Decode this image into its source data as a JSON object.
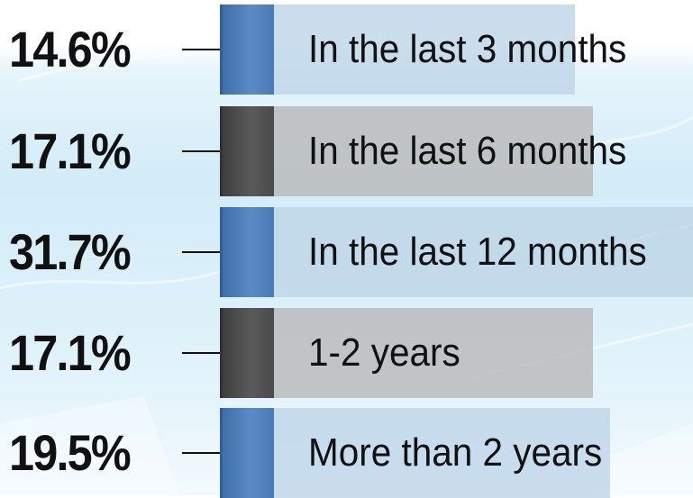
{
  "chart_data": {
    "type": "bar",
    "categories": [
      "In the last 3 months",
      "In the last 6 months",
      "In the last 12 months",
      "1-2 years",
      "More than 2 years"
    ],
    "values": [
      14.6,
      17.1,
      31.7,
      17.1,
      19.5
    ],
    "value_labels": [
      "14.6%",
      "17.1%",
      "31.7%",
      "17.1%",
      "19.5%"
    ],
    "unit": "%",
    "orientation": "horizontal",
    "colors": [
      "#5b8bc4",
      "#555555",
      "#5b8bc4",
      "#555555",
      "#5b8bc4"
    ],
    "band_colors": [
      "#c4d9ea",
      "#bdbdbd",
      "#c4d9ea",
      "#bdbdbd",
      "#c4d9ea"
    ],
    "title": "",
    "xlabel": "",
    "ylabel": "",
    "legend": "none",
    "grid": false
  }
}
